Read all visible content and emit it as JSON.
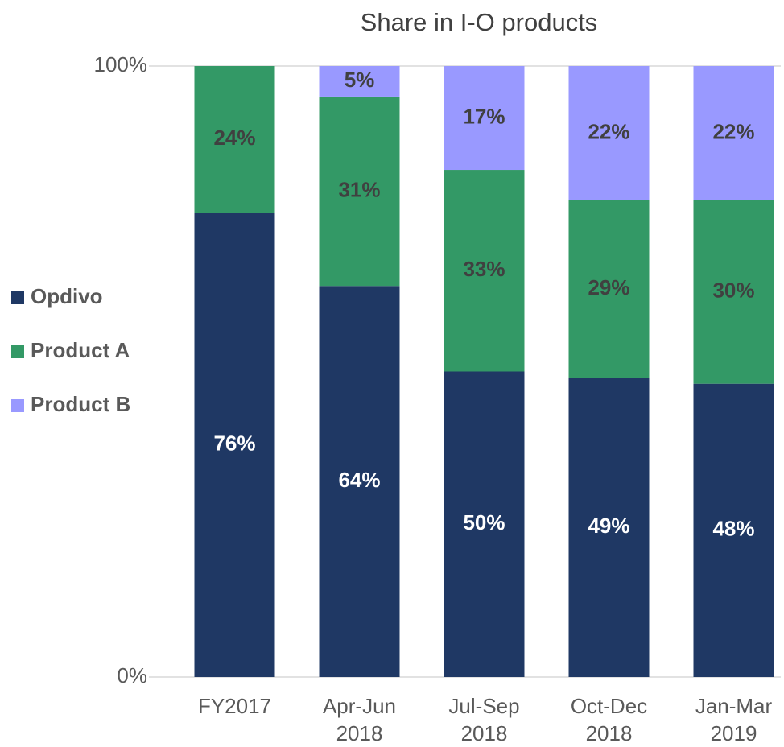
{
  "chart_data": {
    "type": "stacked_bar",
    "title": "Share in I-O products",
    "categories": [
      "FY2017",
      "Apr-Jun 2018",
      "Jul-Sep 2018",
      "Oct-Dec 2018",
      "Jan-Mar 2019"
    ],
    "series": [
      {
        "name": "Opdivo",
        "color": "#1f3864",
        "values": [
          76,
          64,
          50,
          49,
          48
        ],
        "value_labels": [
          "76%",
          "64%",
          "50%",
          "49%",
          "48%"
        ]
      },
      {
        "name": "Product A",
        "color": "#339966",
        "values": [
          24,
          31,
          33,
          29,
          30
        ],
        "value_labels": [
          "24%",
          "31%",
          "33%",
          "29%",
          "30%"
        ]
      },
      {
        "name": "Product B",
        "color": "#9999ff",
        "values": [
          null,
          5,
          17,
          22,
          22
        ],
        "value_labels": [
          null,
          "5%",
          "17%",
          "22%",
          "22%"
        ]
      }
    ],
    "ylim": [
      0,
      100
    ],
    "yticks": [
      {
        "value": 0,
        "label": "0%"
      },
      {
        "value": 100,
        "label": "100%"
      }
    ],
    "grid": true,
    "legend": "left"
  }
}
